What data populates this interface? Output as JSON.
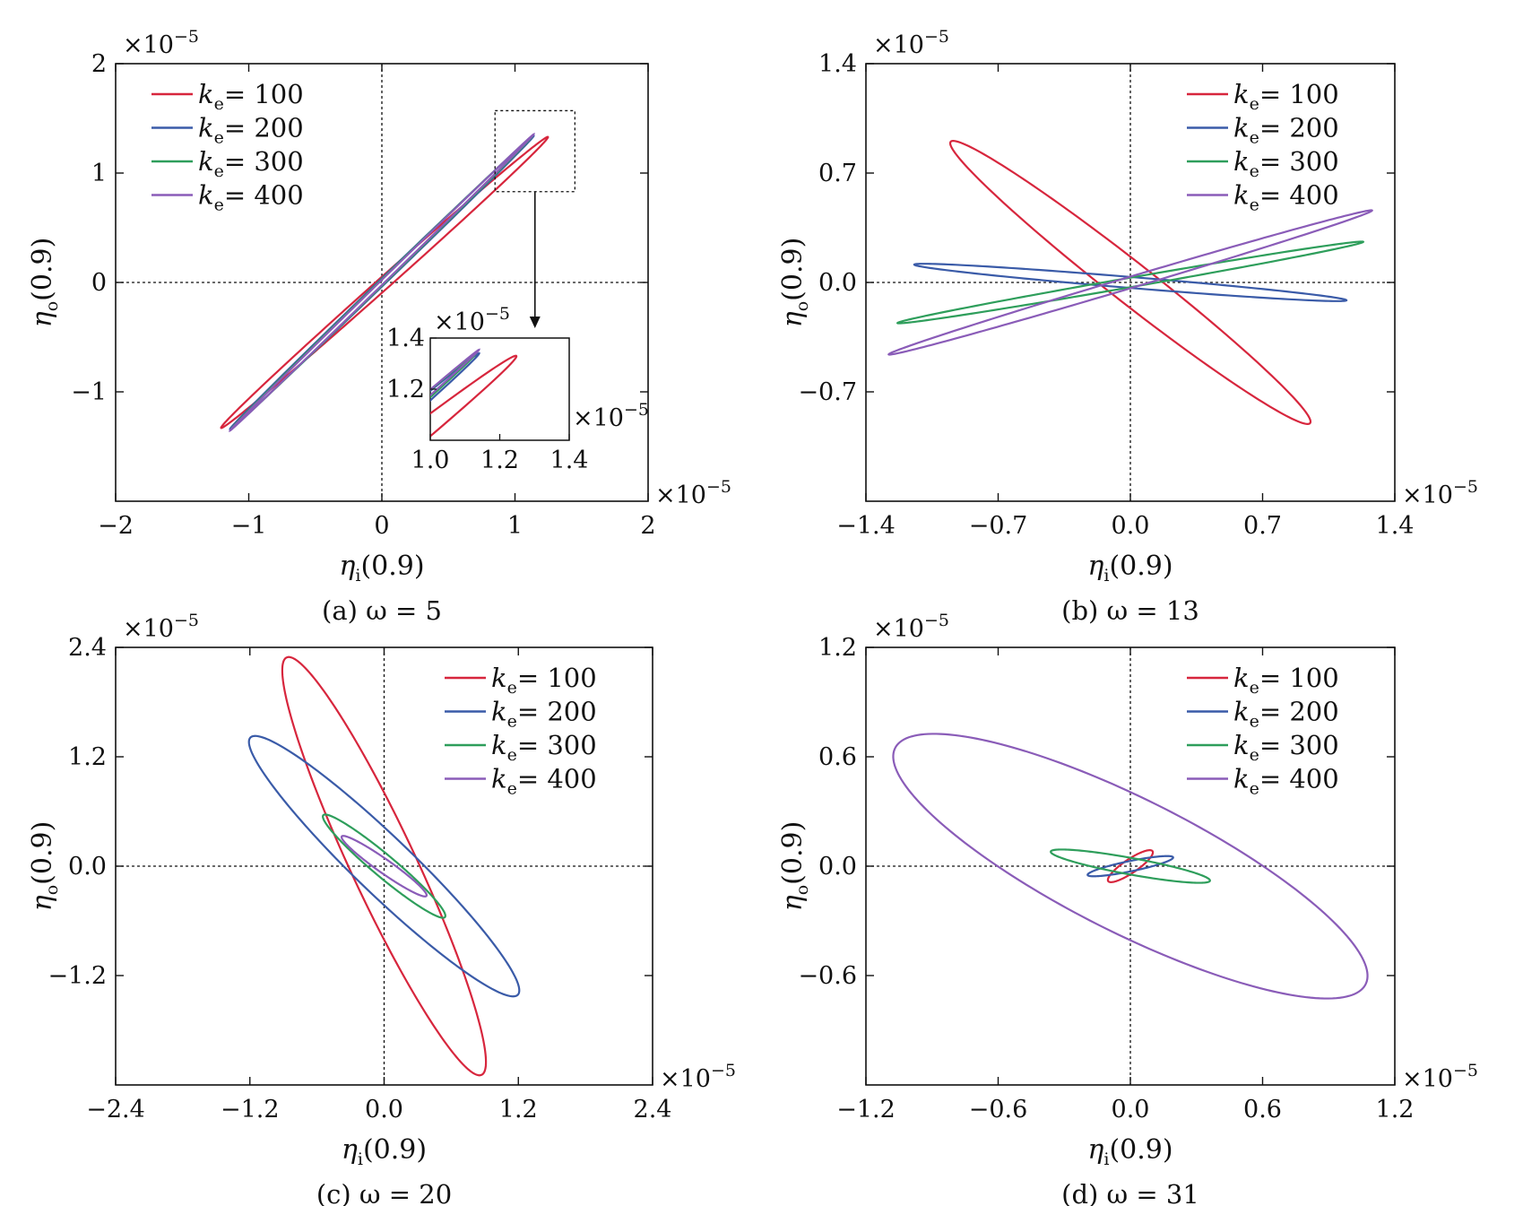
{
  "panels": [
    {
      "id": "a",
      "caption": "(a) ω = 5",
      "x_label": "η",
      "x_label_sub": "i",
      "x_label_rest": "(0.9)",
      "y_label": "η",
      "y_label_sub": "o",
      "y_label_rest": "(0.9)",
      "x_multiplier": "×10",
      "x_multiplier_exp": "−5",
      "y_multiplier": "×10",
      "y_multiplier_exp": "−5",
      "xlim": [
        -2,
        2
      ],
      "ylim": [
        -2,
        2
      ],
      "x_ticks": [
        -2,
        -1,
        0,
        1,
        2
      ],
      "x_tick_labels": [
        "−2",
        "−1",
        "0",
        "1",
        "2"
      ],
      "y_ticks": [
        -1,
        0,
        1,
        2
      ],
      "y_tick_labels": [
        "−1",
        "0",
        "1",
        "2"
      ],
      "legend_position": "top-left",
      "inset": {
        "xlim": [
          1.0,
          1.4
        ],
        "ylim": [
          1.0,
          1.4
        ],
        "x_ticks": [
          1.0,
          1.2,
          1.4
        ],
        "x_tick_labels": [
          "1.0",
          "1.2",
          "1.4"
        ],
        "y_ticks": [
          1.2,
          1.4
        ],
        "y_tick_labels": [
          "1.2",
          "1.4"
        ],
        "x_multiplier": "×10",
        "x_multiplier_exp": "−5",
        "y_multiplier": "×10",
        "y_multiplier_exp": "−5",
        "zoom_box": {
          "x": [
            0.85,
            1.45
          ],
          "y": [
            0.83,
            1.57
          ]
        }
      }
    },
    {
      "id": "b",
      "caption": "(b) ω = 13",
      "x_label": "η",
      "x_label_sub": "i",
      "x_label_rest": "(0.9)",
      "y_label": "η",
      "y_label_sub": "o",
      "y_label_rest": "(0.9)",
      "x_multiplier": "×10",
      "x_multiplier_exp": "−5",
      "y_multiplier": "×10",
      "y_multiplier_exp": "−5",
      "xlim": [
        -1.4,
        1.4
      ],
      "ylim": [
        -1.4,
        1.4
      ],
      "x_ticks": [
        -1.4,
        -0.7,
        0.0,
        0.7,
        1.4
      ],
      "x_tick_labels": [
        "−1.4",
        "−0.7",
        "0.0",
        "0.7",
        "1.4"
      ],
      "y_ticks": [
        -0.7,
        0.0,
        0.7,
        1.4
      ],
      "y_tick_labels": [
        "−0.7",
        "0.0",
        "0.7",
        "1.4"
      ],
      "legend_position": "top-right"
    },
    {
      "id": "c",
      "caption": "(c) ω = 20",
      "x_label": "η",
      "x_label_sub": "i",
      "x_label_rest": "(0.9)",
      "y_label": "η",
      "y_label_sub": "o",
      "y_label_rest": "(0.9)",
      "x_multiplier": "×10",
      "x_multiplier_exp": "−5",
      "y_multiplier": "×10",
      "y_multiplier_exp": "−5",
      "xlim": [
        -2.4,
        2.4
      ],
      "ylim": [
        -2.4,
        2.4
      ],
      "x_ticks": [
        -2.4,
        -1.2,
        0.0,
        1.2,
        2.4
      ],
      "x_tick_labels": [
        "−2.4",
        "−1.2",
        "0.0",
        "1.2",
        "2.4"
      ],
      "y_ticks": [
        -1.2,
        0.0,
        1.2,
        2.4
      ],
      "y_tick_labels": [
        "−1.2",
        "0.0",
        "1.2",
        "2.4"
      ],
      "legend_position": "top-right"
    },
    {
      "id": "d",
      "caption": "(d) ω = 31",
      "x_label": "η",
      "x_label_sub": "i",
      "x_label_rest": "(0.9)",
      "y_label": "η",
      "y_label_sub": "o",
      "y_label_rest": "(0.9)",
      "x_multiplier": "×10",
      "x_multiplier_exp": "−5",
      "y_multiplier": "×10",
      "y_multiplier_exp": "−5",
      "xlim": [
        -1.2,
        1.2
      ],
      "ylim": [
        -1.2,
        1.2
      ],
      "x_ticks": [
        -1.2,
        -0.6,
        0.0,
        0.6,
        1.2
      ],
      "x_tick_labels": [
        "−1.2",
        "−0.6",
        "0.0",
        "0.6",
        "1.2"
      ],
      "y_ticks": [
        -0.6,
        0.0,
        0.6,
        1.2
      ],
      "y_tick_labels": [
        "−0.6",
        "0.0",
        "0.6",
        "1.2"
      ],
      "legend_position": "top-right"
    }
  ],
  "chart_data": [
    {
      "type": "line",
      "panel": "a",
      "series": [
        {
          "name_var": "k",
          "name_sub": "e",
          "name_value": "= 100",
          "color": "#d7263d",
          "ellipse": {
            "cx": 0.02,
            "cy": 0.0,
            "a": 1.81,
            "b": 0.05,
            "angle_deg": 47.3
          }
        },
        {
          "name_var": "k",
          "name_sub": "e",
          "name_value": "= 200",
          "color": "#3a5ba8",
          "ellipse": {
            "cx": 0.0,
            "cy": 0.0,
            "a": 1.76,
            "b": 0.025,
            "angle_deg": 49.6
          }
        },
        {
          "name_var": "k",
          "name_sub": "e",
          "name_value": "= 300",
          "color": "#2e9e5b",
          "ellipse": {
            "cx": 0.0,
            "cy": 0.0,
            "a": 1.75,
            "b": 0.02,
            "angle_deg": 49.8
          }
        },
        {
          "name_var": "k",
          "name_sub": "e",
          "name_value": "= 400",
          "color": "#8a5cb8",
          "ellipse": {
            "cx": 0.0,
            "cy": 0.0,
            "a": 1.77,
            "b": 0.015,
            "angle_deg": 49.9
          }
        }
      ]
    },
    {
      "type": "line",
      "panel": "b",
      "series": [
        {
          "name_var": "k",
          "name_sub": "e",
          "name_value": "= 100",
          "color": "#d7263d",
          "ellipse": {
            "cx": 0.0,
            "cy": 0.0,
            "a": 1.31,
            "b": 0.12,
            "angle_deg": -43.5
          }
        },
        {
          "name_var": "k",
          "name_sub": "e",
          "name_value": "= 200",
          "color": "#3a5ba8",
          "ellipse": {
            "cx": 0.0,
            "cy": 0.0,
            "a": 1.15,
            "b": 0.035,
            "angle_deg": -5.7
          }
        },
        {
          "name_var": "k",
          "name_sub": "e",
          "name_value": "= 300",
          "color": "#2e9e5b",
          "ellipse": {
            "cx": 0.0,
            "cy": 0.0,
            "a": 1.26,
            "b": 0.03,
            "angle_deg": 11.9
          }
        },
        {
          "name_var": "k",
          "name_sub": "e",
          "name_value": "= 400",
          "color": "#8a5cb8",
          "ellipse": {
            "cx": 0.0,
            "cy": 0.0,
            "a": 1.36,
            "b": 0.035,
            "angle_deg": 19.8
          }
        }
      ]
    },
    {
      "type": "line",
      "panel": "c",
      "series": [
        {
          "name_var": "k",
          "name_sub": "e",
          "name_value": "= 100",
          "color": "#d7263d",
          "ellipse": {
            "cx": 0.0,
            "cy": 0.0,
            "a": 2.45,
            "b": 0.3,
            "angle_deg": -69.3
          }
        },
        {
          "name_var": "k",
          "name_sub": "e",
          "name_value": "= 200",
          "color": "#3a5ba8",
          "ellipse": {
            "cx": 0.0,
            "cy": 0.0,
            "a": 1.85,
            "b": 0.28,
            "angle_deg": -50.0
          }
        },
        {
          "name_var": "k",
          "name_sub": "e",
          "name_value": "= 300",
          "color": "#2e9e5b",
          "ellipse": {
            "cx": 0.0,
            "cy": 0.0,
            "a": 0.78,
            "b": 0.11,
            "angle_deg": -46.0
          }
        },
        {
          "name_var": "k",
          "name_sub": "e",
          "name_value": "= 400",
          "color": "#8a5cb8",
          "ellipse": {
            "cx": 0.0,
            "cy": 0.0,
            "a": 0.5,
            "b": 0.07,
            "angle_deg": -41.0
          }
        }
      ]
    },
    {
      "type": "line",
      "panel": "d",
      "series": [
        {
          "name_var": "k",
          "name_sub": "e",
          "name_value": "= 100",
          "color": "#d7263d",
          "ellipse": {
            "cx": 0.0,
            "cy": 0.0,
            "a": 0.13,
            "b": 0.035,
            "angle_deg": 40.0
          }
        },
        {
          "name_var": "k",
          "name_sub": "e",
          "name_value": "= 200",
          "color": "#3a5ba8",
          "ellipse": {
            "cx": 0.0,
            "cy": 0.0,
            "a": 0.2,
            "b": 0.028,
            "angle_deg": 14.0
          }
        },
        {
          "name_var": "k",
          "name_sub": "e",
          "name_value": "= 300",
          "color": "#2e9e5b",
          "ellipse": {
            "cx": 0.0,
            "cy": 0.0,
            "a": 0.37,
            "b": 0.045,
            "angle_deg": -12.5
          }
        },
        {
          "name_var": "k",
          "name_sub": "e",
          "name_value": "= 400",
          "color": "#8a5cb8",
          "ellipse": {
            "cx": 0.0,
            "cy": 0.0,
            "a": 1.25,
            "b": 0.35,
            "angle_deg": -32.0
          }
        }
      ]
    }
  ]
}
